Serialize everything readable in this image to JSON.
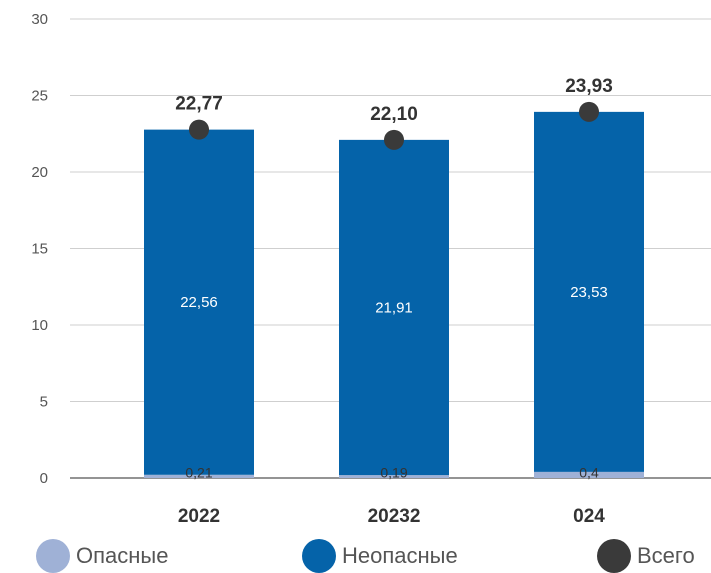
{
  "chart_data": {
    "type": "bar",
    "stacked": true,
    "categories": [
      "2022",
      "20232",
      "024"
    ],
    "series": [
      {
        "name": "Опасные",
        "values": [
          0.21,
          0.19,
          0.4
        ],
        "labels": [
          "0,21",
          "0,19",
          "0,4"
        ],
        "color": "#9fb1d6"
      },
      {
        "name": "Неопасные",
        "values": [
          22.56,
          21.91,
          23.53
        ],
        "labels": [
          "22,56",
          "21,91",
          "23,53"
        ],
        "color": "#0563a9"
      }
    ],
    "totals": {
      "name": "Всего",
      "values": [
        22.77,
        22.1,
        23.93
      ],
      "labels": [
        "22,77",
        "22,10",
        "23,93"
      ],
      "color": "#3a3a3a"
    },
    "yticks": [
      "0",
      "5",
      "10",
      "15",
      "20",
      "25",
      "30"
    ],
    "ylim": [
      0,
      30
    ],
    "grid": true,
    "legend_position": "bottom"
  }
}
